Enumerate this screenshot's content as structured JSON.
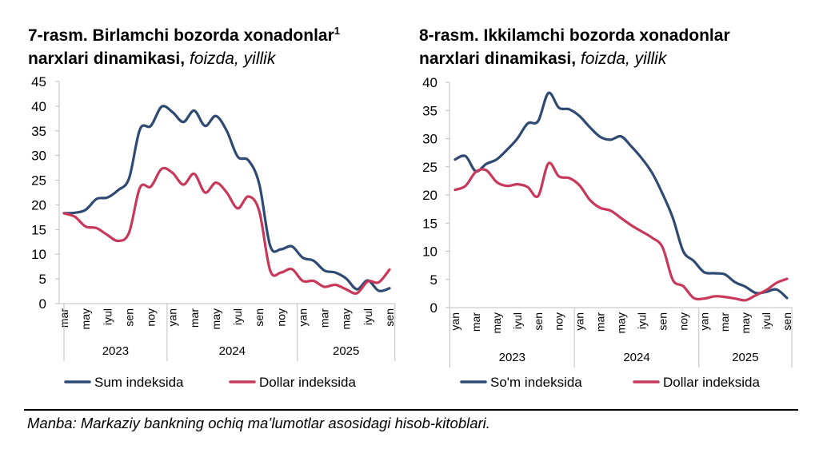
{
  "charts": [
    {
      "title_bold": "7-rasm. Birlamchi bozorda xonadonlar",
      "footnote": "1",
      "title_bold2": "narxlari dinamikasi,",
      "title_italic": "foizda, yillik"
    },
    {
      "title_bold": "8-rasm. Ikkilamchi bozorda xonadonlar",
      "title_bold2": "narxlari dinamikasi,",
      "title_italic": "foizda, yillik"
    }
  ],
  "source": "Manba: Markaziy bankning ochiq ma’lumotlar asosidagi hisob-kitoblari.",
  "chart_data": [
    {
      "type": "line",
      "title": "7-rasm. Birlamchi bozorda xonadonlar narxlari dinamikasi, foizda, yillik",
      "ylim": [
        0,
        45
      ],
      "yticks": [
        0,
        5,
        10,
        15,
        20,
        25,
        30,
        35,
        40,
        45
      ],
      "x_count": 31,
      "x_ticks": [
        {
          "i": 0,
          "label": "mar"
        },
        {
          "i": 2,
          "label": "may"
        },
        {
          "i": 4,
          "label": "iyul"
        },
        {
          "i": 6,
          "label": "sen"
        },
        {
          "i": 8,
          "label": "noy"
        },
        {
          "i": 10,
          "label": "yan"
        },
        {
          "i": 12,
          "label": "mar"
        },
        {
          "i": 14,
          "label": "may"
        },
        {
          "i": 16,
          "label": "iyul"
        },
        {
          "i": 18,
          "label": "sen"
        },
        {
          "i": 20,
          "label": "noy"
        },
        {
          "i": 22,
          "label": "yan"
        },
        {
          "i": 24,
          "label": "mar"
        },
        {
          "i": 26,
          "label": "may"
        },
        {
          "i": 28,
          "label": "iyul"
        },
        {
          "i": 30,
          "label": "sen"
        }
      ],
      "years": [
        {
          "label": "2023",
          "start": 0,
          "end": 9.5
        },
        {
          "label": "2024",
          "start": 9.5,
          "end": 21.5
        },
        {
          "label": "2025",
          "start": 21.5,
          "end": 30.5
        }
      ],
      "series": [
        {
          "name": "Sum indeksida",
          "color": "#2e4a73",
          "values": [
            18.3,
            18.4,
            19,
            21.2,
            21.5,
            23,
            25.4,
            35.3,
            36,
            39.9,
            38.8,
            36.8,
            39.1,
            36,
            38,
            35,
            29.8,
            29,
            24.2,
            11.7,
            11,
            11.6,
            9.3,
            8.7,
            6.7,
            6.3,
            5.1,
            2.9,
            4.7,
            2.6,
            3.1
          ]
        },
        {
          "name": "Dollar indeksida",
          "color": "#c8385a",
          "values": [
            18.3,
            17.6,
            15.6,
            15.3,
            13.9,
            12.7,
            14.4,
            23.5,
            23.7,
            27.3,
            26.5,
            24.1,
            26.3,
            22.5,
            24.5,
            22.5,
            19.3,
            21.7,
            18.7,
            6.7,
            6.3,
            7,
            4.6,
            4.6,
            3.4,
            3.8,
            2.9,
            2.1,
            4.5,
            4.3,
            6.9
          ]
        }
      ]
    },
    {
      "type": "line",
      "title": "8-rasm. Ikkilamchi bozorda xonadonlar narxlari dinamikasi, foizda, yillik",
      "ylim": [
        0,
        40
      ],
      "yticks": [
        0,
        5,
        10,
        15,
        20,
        25,
        30,
        35,
        40
      ],
      "x_count": 33,
      "x_ticks": [
        {
          "i": 0,
          "label": "yan"
        },
        {
          "i": 2,
          "label": "mar"
        },
        {
          "i": 4,
          "label": "may"
        },
        {
          "i": 6,
          "label": "iyul"
        },
        {
          "i": 8,
          "label": "sen"
        },
        {
          "i": 10,
          "label": "noy"
        },
        {
          "i": 12,
          "label": "yan"
        },
        {
          "i": 14,
          "label": "mar"
        },
        {
          "i": 16,
          "label": "may"
        },
        {
          "i": 18,
          "label": "iyul"
        },
        {
          "i": 20,
          "label": "sen"
        },
        {
          "i": 22,
          "label": "noy"
        },
        {
          "i": 24,
          "label": "yan"
        },
        {
          "i": 26,
          "label": "mar"
        },
        {
          "i": 28,
          "label": "may"
        },
        {
          "i": 30,
          "label": "iyul"
        },
        {
          "i": 32,
          "label": "sen"
        }
      ],
      "years": [
        {
          "label": "2023",
          "start": -0.5,
          "end": 11.5
        },
        {
          "label": "2024",
          "start": 11.5,
          "end": 23.5
        },
        {
          "label": "2025",
          "start": 23.5,
          "end": 32.5
        }
      ],
      "series": [
        {
          "name": "So'm indeksida",
          "color": "#2e4a73",
          "values": [
            26.3,
            26.9,
            24.2,
            25.5,
            26.3,
            28,
            30,
            32.7,
            33.1,
            38.1,
            35.5,
            35.2,
            34,
            32,
            30.3,
            29.8,
            30.4,
            28.6,
            26.5,
            23.9,
            20.2,
            15.9,
            10,
            8.3,
            6.3,
            6.1,
            5.9,
            4.5,
            3.7,
            2.6,
            2.8,
            3.2,
            1.7
          ]
        },
        {
          "name": "Dollar indeksida",
          "color": "#c8385a",
          "values": [
            20.9,
            21.6,
            24.1,
            24.4,
            22.3,
            21.6,
            21.9,
            21.4,
            19.8,
            25.6,
            23.3,
            23,
            21.7,
            19.1,
            17.7,
            17.2,
            15.9,
            14.6,
            13.5,
            12.4,
            10.7,
            4.9,
            3.8,
            1.7,
            1.6,
            2,
            1.9,
            1.6,
            1.3,
            2.2,
            3.1,
            4.4,
            5.1
          ]
        }
      ]
    }
  ]
}
